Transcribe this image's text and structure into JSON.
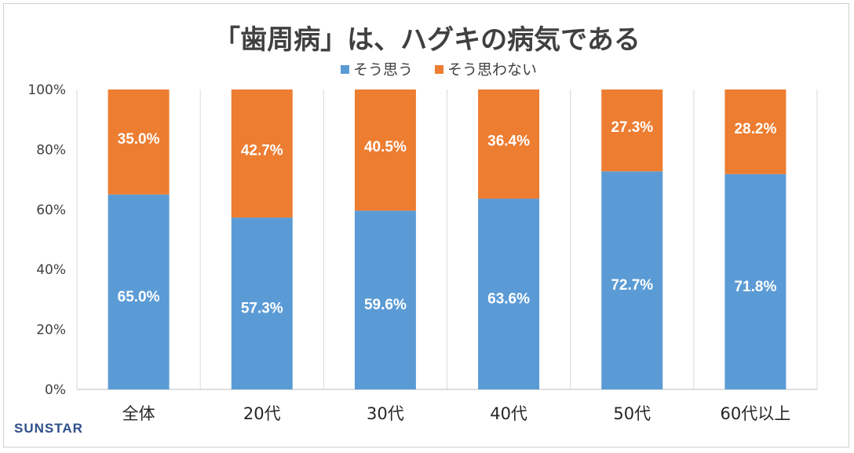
{
  "chart_data": {
    "type": "bar",
    "stacked": true,
    "title": "「歯周病」は、ハグキの病気である",
    "categories": [
      "全体",
      "20代",
      "30代",
      "40代",
      "50代",
      "60代以上"
    ],
    "series": [
      {
        "name": "そう思う",
        "color": "#5b9bd5",
        "values": [
          65.0,
          57.3,
          59.6,
          63.6,
          72.7,
          71.8
        ]
      },
      {
        "name": "そう思わない",
        "color": "#ed7d31",
        "values": [
          35.0,
          42.7,
          40.5,
          36.4,
          27.3,
          28.2
        ]
      }
    ],
    "value_labels": [
      [
        "65.0%",
        "57.3%",
        "59.6%",
        "63.6%",
        "72.7%",
        "71.8%"
      ],
      [
        "35.0%",
        "42.7%",
        "40.5%",
        "36.4%",
        "27.3%",
        "28.2%"
      ]
    ],
    "ylim": [
      0,
      100
    ],
    "yticks": [
      0,
      20,
      40,
      60,
      80,
      100
    ],
    "ytick_labels": [
      "0%",
      "20%",
      "40%",
      "60%",
      "80%",
      "100%"
    ],
    "grid": "vertical separators",
    "legend": "top-center"
  },
  "logo": "SUNSTAR"
}
